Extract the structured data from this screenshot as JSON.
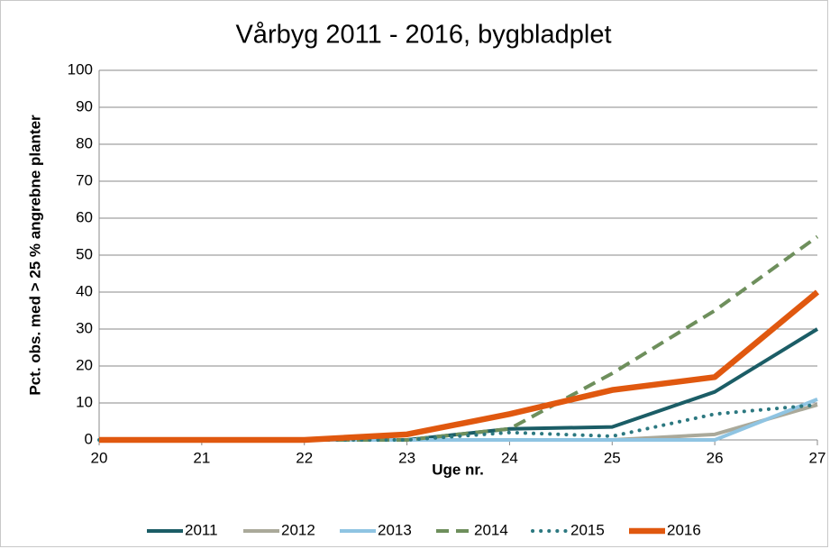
{
  "chart_data": {
    "type": "line",
    "title": "Vårbyg 2011 - 2016, bygbladplet",
    "x_label": "Uge nr.",
    "y_label": "Pct. obs. med > 25 % angrebne planter",
    "x": [
      20,
      21,
      22,
      23,
      24,
      25,
      26,
      27
    ],
    "xlim": [
      20,
      27
    ],
    "xticks": [
      20,
      21,
      22,
      23,
      24,
      25,
      26,
      27
    ],
    "ylim": [
      0,
      100
    ],
    "yticks": [
      0,
      10,
      20,
      30,
      40,
      50,
      60,
      70,
      80,
      90,
      100
    ],
    "grid": true,
    "legend": "bottom",
    "series": [
      {
        "name": "2011",
        "color": "#1b5d66",
        "style": "solid",
        "values": [
          0,
          0,
          0,
          0,
          3,
          3.5,
          13,
          30
        ]
      },
      {
        "name": "2012",
        "color": "#aaa99a",
        "style": "solid",
        "values": [
          0,
          0,
          0,
          0,
          0,
          0,
          1.5,
          9.5
        ]
      },
      {
        "name": "2013",
        "color": "#8fc4e2",
        "style": "solid",
        "values": [
          0,
          0,
          0,
          0,
          0,
          0,
          0,
          11
        ]
      },
      {
        "name": "2014",
        "color": "#6e8f5c",
        "style": "dashed",
        "values": [
          0,
          0,
          0,
          0,
          3,
          18,
          35,
          55
        ]
      },
      {
        "name": "2015",
        "color": "#2c7880",
        "style": "dotted",
        "values": [
          0,
          0,
          0,
          0,
          2,
          1,
          7,
          9.5
        ]
      },
      {
        "name": "2016",
        "color": "#e0580f",
        "style": "bold",
        "values": [
          0,
          0,
          0,
          1.5,
          7,
          13.5,
          17,
          40
        ]
      }
    ]
  }
}
